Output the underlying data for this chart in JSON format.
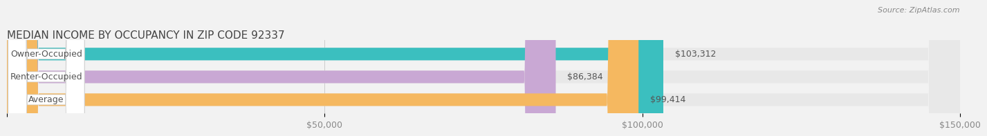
{
  "title": "MEDIAN INCOME BY OCCUPANCY IN ZIP CODE 92337",
  "source": "Source: ZipAtlas.com",
  "categories": [
    "Owner-Occupied",
    "Renter-Occupied",
    "Average"
  ],
  "values": [
    103312,
    86384,
    99414
  ],
  "bar_colors": [
    "#3bbfbf",
    "#c9a8d4",
    "#f5b860"
  ],
  "background_color": "#f2f2f2",
  "bar_bg_color": "#e8e8e8",
  "xlim": [
    0,
    150000
  ],
  "xticks": [
    0,
    50000,
    100000,
    150000
  ],
  "xtick_labels": [
    "",
    "$50,000",
    "$100,000",
    "$150,000"
  ],
  "title_fontsize": 11,
  "tick_fontsize": 9,
  "label_fontsize": 9,
  "value_fontsize": 9
}
